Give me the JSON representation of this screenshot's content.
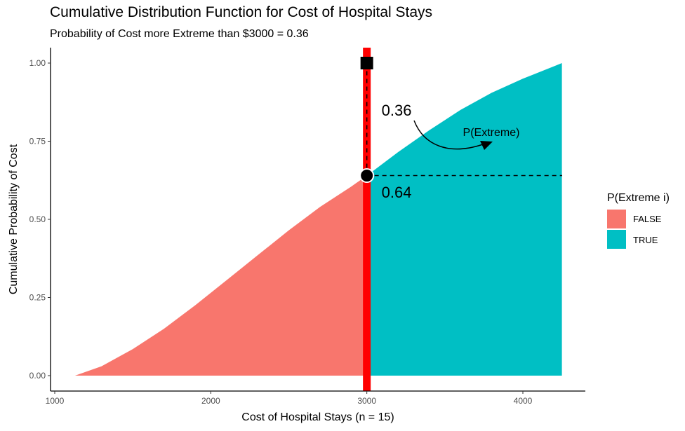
{
  "chart_data": {
    "type": "area",
    "title": "Cumulative Distribution Function for Cost of Hospital Stays",
    "subtitle": "Probability of Cost more Extreme than $3000 = 0.36",
    "xlabel": "Cost of Hospital Stays (n = 15)",
    "ylabel": "Cumulative Probability of Cost",
    "xlim": [
      1000,
      4400
    ],
    "ylim": [
      0,
      1
    ],
    "x_ticks": [
      1000,
      2000,
      3000,
      4000
    ],
    "x_tick_labels": [
      "1000",
      "2000",
      "3000",
      "4000"
    ],
    "y_ticks": [
      0,
      0.25,
      0.5,
      0.75,
      1
    ],
    "y_tick_labels": [
      "0.00",
      "0.25",
      "0.50",
      "0.75",
      "1.00"
    ],
    "grid": false,
    "legend_position": "right",
    "legend": {
      "title": "P(Extreme i)",
      "entries": [
        {
          "label": "FALSE",
          "color": "#F8766D"
        },
        {
          "label": "TRUE",
          "color": "#00BFC4"
        }
      ]
    },
    "series": [
      {
        "name": "FALSE",
        "color": "#F8766D",
        "x": [
          1130,
          1300,
          1500,
          1700,
          1900,
          2100,
          2300,
          2500,
          2700,
          2900,
          3000
        ],
        "y": [
          0.0,
          0.03,
          0.085,
          0.15,
          0.225,
          0.305,
          0.385,
          0.465,
          0.54,
          0.605,
          0.64
        ]
      },
      {
        "name": "TRUE",
        "color": "#00BFC4",
        "x": [
          3000,
          3200,
          3400,
          3600,
          3800,
          4000,
          4200,
          4250
        ],
        "y": [
          0.64,
          0.715,
          0.785,
          0.85,
          0.905,
          0.95,
          0.99,
          1.0
        ]
      }
    ],
    "marker_x": 3000,
    "marker_y": 0.64,
    "marker_top_y": 1.0,
    "vertical_line_color": "#FF0000",
    "annotations": {
      "upper_probability": "0.36",
      "lower_probability": "0.64",
      "extreme_label": "P(Extreme)"
    }
  }
}
